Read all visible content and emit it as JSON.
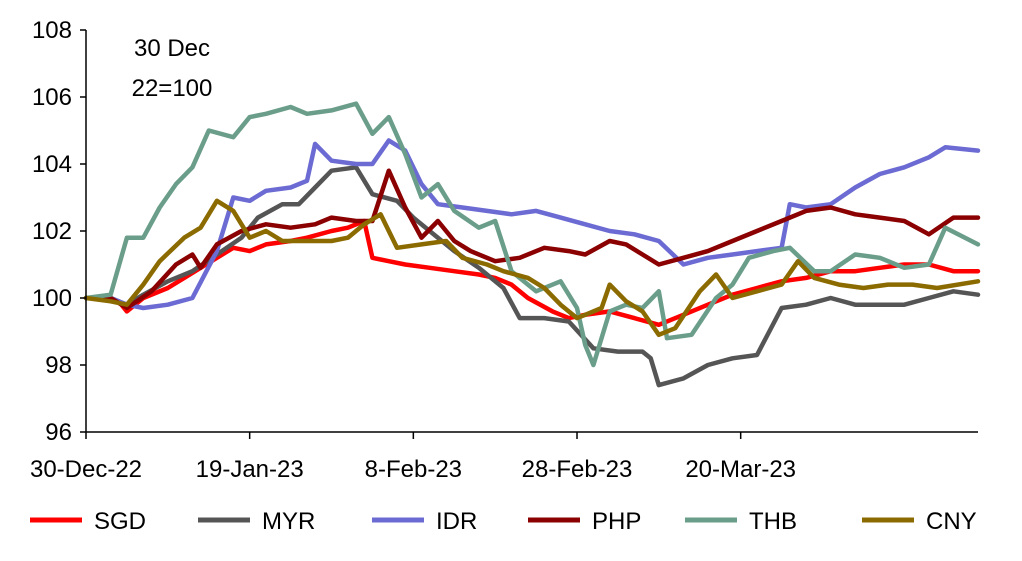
{
  "chart_data": {
    "type": "line",
    "title": "",
    "xlabel": "",
    "ylabel": "",
    "annotation": [
      "30 Dec",
      "22=100"
    ],
    "ylim": [
      96,
      108
    ],
    "yticks": [
      96,
      98,
      100,
      102,
      104,
      106,
      108
    ],
    "xlim": [
      "2022-12-30",
      "2023-04-18"
    ],
    "xticks": [
      {
        "date": "2022-12-30",
        "label": "30-Dec-22"
      },
      {
        "date": "2023-01-19",
        "label": "19-Jan-23"
      },
      {
        "date": "2023-02-08",
        "label": "8-Feb-23"
      },
      {
        "date": "2023-02-28",
        "label": "28-Feb-23"
      },
      {
        "date": "2023-03-20",
        "label": "20-Mar-23"
      }
    ],
    "grid": false,
    "legend_position": "bottom",
    "series": [
      {
        "name": "SGD",
        "color": "#ff0000",
        "points": [
          [
            "2022-12-30",
            100.0
          ],
          [
            "2023-01-01",
            100.0
          ],
          [
            "2023-01-03",
            99.9
          ],
          [
            "2023-01-04",
            99.6
          ],
          [
            "2023-01-06",
            100.0
          ],
          [
            "2023-01-09",
            100.3
          ],
          [
            "2023-01-11",
            100.6
          ],
          [
            "2023-01-13",
            100.9
          ],
          [
            "2023-01-15",
            101.2
          ],
          [
            "2023-01-17",
            101.5
          ],
          [
            "2023-01-19",
            101.4
          ],
          [
            "2023-01-21",
            101.6
          ],
          [
            "2023-01-24",
            101.7
          ],
          [
            "2023-01-26",
            101.8
          ],
          [
            "2023-01-29",
            102.0
          ],
          [
            "2023-01-31",
            102.1
          ],
          [
            "2023-02-02",
            102.3
          ],
          [
            "2023-02-03",
            101.2
          ],
          [
            "2023-02-05",
            101.1
          ],
          [
            "2023-02-07",
            101.0
          ],
          [
            "2023-02-10",
            100.9
          ],
          [
            "2023-02-13",
            100.8
          ],
          [
            "2023-02-16",
            100.7
          ],
          [
            "2023-02-18",
            100.6
          ],
          [
            "2023-02-20",
            100.4
          ],
          [
            "2023-02-22",
            100.0
          ],
          [
            "2023-02-25",
            99.6
          ],
          [
            "2023-02-27",
            99.4
          ],
          [
            "2023-03-01",
            99.5
          ],
          [
            "2023-03-04",
            99.6
          ],
          [
            "2023-03-07",
            99.4
          ],
          [
            "2023-03-10",
            99.2
          ],
          [
            "2023-03-13",
            99.5
          ],
          [
            "2023-03-16",
            99.8
          ],
          [
            "2023-03-19",
            100.1
          ],
          [
            "2023-03-22",
            100.3
          ],
          [
            "2023-03-25",
            100.5
          ],
          [
            "2023-03-28",
            100.6
          ],
          [
            "2023-03-31",
            100.8
          ],
          [
            "2023-04-03",
            100.8
          ],
          [
            "2023-04-06",
            100.9
          ],
          [
            "2023-04-09",
            101.0
          ],
          [
            "2023-04-12",
            101.0
          ],
          [
            "2023-04-15",
            100.8
          ],
          [
            "2023-04-18",
            100.8
          ]
        ]
      },
      {
        "name": "MYR",
        "color": "#555555",
        "points": [
          [
            "2022-12-30",
            100.0
          ],
          [
            "2023-01-02",
            100.0
          ],
          [
            "2023-01-04",
            99.8
          ],
          [
            "2023-01-06",
            100.1
          ],
          [
            "2023-01-09",
            100.5
          ],
          [
            "2023-01-12",
            100.8
          ],
          [
            "2023-01-15",
            101.3
          ],
          [
            "2023-01-18",
            101.8
          ],
          [
            "2023-01-20",
            102.4
          ],
          [
            "2023-01-23",
            102.8
          ],
          [
            "2023-01-25",
            102.8
          ],
          [
            "2023-01-27",
            103.3
          ],
          [
            "2023-01-29",
            103.8
          ],
          [
            "2023-02-01",
            103.9
          ],
          [
            "2023-02-03",
            103.1
          ],
          [
            "2023-02-06",
            102.9
          ],
          [
            "2023-02-08",
            102.4
          ],
          [
            "2023-02-11",
            101.8
          ],
          [
            "2023-02-13",
            101.4
          ],
          [
            "2023-02-16",
            100.9
          ],
          [
            "2023-02-19",
            100.3
          ],
          [
            "2023-02-21",
            99.4
          ],
          [
            "2023-02-24",
            99.4
          ],
          [
            "2023-02-27",
            99.3
          ],
          [
            "2023-03-02",
            98.5
          ],
          [
            "2023-03-05",
            98.4
          ],
          [
            "2023-03-08",
            98.4
          ],
          [
            "2023-03-09",
            98.2
          ],
          [
            "2023-03-10",
            97.4
          ],
          [
            "2023-03-13",
            97.6
          ],
          [
            "2023-03-16",
            98.0
          ],
          [
            "2023-03-19",
            98.2
          ],
          [
            "2023-03-22",
            98.3
          ],
          [
            "2023-03-25",
            99.7
          ],
          [
            "2023-03-28",
            99.8
          ],
          [
            "2023-03-31",
            100.0
          ],
          [
            "2023-04-03",
            99.8
          ],
          [
            "2023-04-06",
            99.8
          ],
          [
            "2023-04-09",
            99.8
          ],
          [
            "2023-04-12",
            100.0
          ],
          [
            "2023-04-15",
            100.2
          ],
          [
            "2023-04-18",
            100.1
          ]
        ]
      },
      {
        "name": "IDR",
        "color": "#6b6bd3",
        "points": [
          [
            "2022-12-30",
            100.0
          ],
          [
            "2023-01-02",
            100.0
          ],
          [
            "2023-01-04",
            99.8
          ],
          [
            "2023-01-06",
            99.7
          ],
          [
            "2023-01-09",
            99.8
          ],
          [
            "2023-01-12",
            100.0
          ],
          [
            "2023-01-15",
            101.4
          ],
          [
            "2023-01-17",
            103.0
          ],
          [
            "2023-01-19",
            102.9
          ],
          [
            "2023-01-21",
            103.2
          ],
          [
            "2023-01-24",
            103.3
          ],
          [
            "2023-01-26",
            103.5
          ],
          [
            "2023-01-27",
            104.6
          ],
          [
            "2023-01-29",
            104.1
          ],
          [
            "2023-02-01",
            104.0
          ],
          [
            "2023-02-03",
            104.0
          ],
          [
            "2023-02-05",
            104.7
          ],
          [
            "2023-02-07",
            104.4
          ],
          [
            "2023-02-09",
            103.4
          ],
          [
            "2023-02-11",
            102.8
          ],
          [
            "2023-02-14",
            102.7
          ],
          [
            "2023-02-17",
            102.6
          ],
          [
            "2023-02-20",
            102.5
          ],
          [
            "2023-02-23",
            102.6
          ],
          [
            "2023-02-26",
            102.4
          ],
          [
            "2023-03-01",
            102.2
          ],
          [
            "2023-03-04",
            102.0
          ],
          [
            "2023-03-07",
            101.9
          ],
          [
            "2023-03-10",
            101.7
          ],
          [
            "2023-03-13",
            101.0
          ],
          [
            "2023-03-16",
            101.2
          ],
          [
            "2023-03-19",
            101.3
          ],
          [
            "2023-03-22",
            101.4
          ],
          [
            "2023-03-25",
            101.5
          ],
          [
            "2023-03-26",
            102.8
          ],
          [
            "2023-03-28",
            102.7
          ],
          [
            "2023-03-31",
            102.8
          ],
          [
            "2023-04-03",
            103.3
          ],
          [
            "2023-04-06",
            103.7
          ],
          [
            "2023-04-09",
            103.9
          ],
          [
            "2023-04-12",
            104.2
          ],
          [
            "2023-04-14",
            104.5
          ],
          [
            "2023-04-18",
            104.4
          ]
        ]
      },
      {
        "name": "PHP",
        "color": "#8b0000",
        "points": [
          [
            "2022-12-30",
            100.0
          ],
          [
            "2023-01-02",
            100.0
          ],
          [
            "2023-01-04",
            99.7
          ],
          [
            "2023-01-07",
            100.2
          ],
          [
            "2023-01-10",
            101.0
          ],
          [
            "2023-01-12",
            101.3
          ],
          [
            "2023-01-13",
            100.9
          ],
          [
            "2023-01-15",
            101.6
          ],
          [
            "2023-01-18",
            102.0
          ],
          [
            "2023-01-21",
            102.2
          ],
          [
            "2023-01-24",
            102.1
          ],
          [
            "2023-01-27",
            102.2
          ],
          [
            "2023-01-29",
            102.4
          ],
          [
            "2023-02-01",
            102.3
          ],
          [
            "2023-02-03",
            102.3
          ],
          [
            "2023-02-05",
            103.8
          ],
          [
            "2023-02-07",
            102.7
          ],
          [
            "2023-02-09",
            101.8
          ],
          [
            "2023-02-11",
            102.3
          ],
          [
            "2023-02-13",
            101.7
          ],
          [
            "2023-02-15",
            101.4
          ],
          [
            "2023-02-18",
            101.1
          ],
          [
            "2023-02-21",
            101.2
          ],
          [
            "2023-02-24",
            101.5
          ],
          [
            "2023-02-27",
            101.4
          ],
          [
            "2023-03-01",
            101.3
          ],
          [
            "2023-03-04",
            101.7
          ],
          [
            "2023-03-06",
            101.6
          ],
          [
            "2023-03-08",
            101.3
          ],
          [
            "2023-03-10",
            101.0
          ],
          [
            "2023-03-13",
            101.2
          ],
          [
            "2023-03-16",
            101.4
          ],
          [
            "2023-03-19",
            101.7
          ],
          [
            "2023-03-22",
            102.0
          ],
          [
            "2023-03-25",
            102.3
          ],
          [
            "2023-03-28",
            102.6
          ],
          [
            "2023-03-31",
            102.7
          ],
          [
            "2023-04-03",
            102.5
          ],
          [
            "2023-04-06",
            102.4
          ],
          [
            "2023-04-09",
            102.3
          ],
          [
            "2023-04-12",
            101.9
          ],
          [
            "2023-04-15",
            102.4
          ],
          [
            "2023-04-18",
            102.4
          ]
        ]
      },
      {
        "name": "THB",
        "color": "#6b9e8a",
        "points": [
          [
            "2022-12-30",
            100.0
          ],
          [
            "2023-01-02",
            100.1
          ],
          [
            "2023-01-04",
            101.8
          ],
          [
            "2023-01-06",
            101.8
          ],
          [
            "2023-01-08",
            102.7
          ],
          [
            "2023-01-10",
            103.4
          ],
          [
            "2023-01-12",
            103.9
          ],
          [
            "2023-01-14",
            105.0
          ],
          [
            "2023-01-17",
            104.8
          ],
          [
            "2023-01-19",
            105.4
          ],
          [
            "2023-01-21",
            105.5
          ],
          [
            "2023-01-24",
            105.7
          ],
          [
            "2023-01-26",
            105.5
          ],
          [
            "2023-01-29",
            105.6
          ],
          [
            "2023-02-01",
            105.8
          ],
          [
            "2023-02-03",
            104.9
          ],
          [
            "2023-02-05",
            105.4
          ],
          [
            "2023-02-07",
            104.3
          ],
          [
            "2023-02-09",
            103.0
          ],
          [
            "2023-02-11",
            103.4
          ],
          [
            "2023-02-13",
            102.6
          ],
          [
            "2023-02-16",
            102.1
          ],
          [
            "2023-02-18",
            102.3
          ],
          [
            "2023-02-20",
            100.8
          ],
          [
            "2023-02-23",
            100.2
          ],
          [
            "2023-02-26",
            100.5
          ],
          [
            "2023-02-28",
            99.7
          ],
          [
            "2023-03-01",
            98.6
          ],
          [
            "2023-03-02",
            98.0
          ],
          [
            "2023-03-04",
            99.6
          ],
          [
            "2023-03-06",
            99.8
          ],
          [
            "2023-03-08",
            99.7
          ],
          [
            "2023-03-10",
            100.2
          ],
          [
            "2023-03-11",
            98.8
          ],
          [
            "2023-03-14",
            98.9
          ],
          [
            "2023-03-17",
            100.0
          ],
          [
            "2023-03-19",
            100.4
          ],
          [
            "2023-03-21",
            101.2
          ],
          [
            "2023-03-24",
            101.4
          ],
          [
            "2023-03-26",
            101.5
          ],
          [
            "2023-03-29",
            100.8
          ],
          [
            "2023-03-31",
            100.8
          ],
          [
            "2023-04-03",
            101.3
          ],
          [
            "2023-04-06",
            101.2
          ],
          [
            "2023-04-09",
            100.9
          ],
          [
            "2023-04-12",
            101.0
          ],
          [
            "2023-04-14",
            102.1
          ],
          [
            "2023-04-18",
            101.6
          ]
        ]
      },
      {
        "name": "CNY",
        "color": "#8b6b00",
        "points": [
          [
            "2022-12-30",
            100.0
          ],
          [
            "2023-01-02",
            99.9
          ],
          [
            "2023-01-04",
            99.8
          ],
          [
            "2023-01-06",
            100.4
          ],
          [
            "2023-01-08",
            101.1
          ],
          [
            "2023-01-11",
            101.8
          ],
          [
            "2023-01-13",
            102.1
          ],
          [
            "2023-01-15",
            102.9
          ],
          [
            "2023-01-17",
            102.6
          ],
          [
            "2023-01-19",
            101.8
          ],
          [
            "2023-01-21",
            102.0
          ],
          [
            "2023-01-23",
            101.7
          ],
          [
            "2023-01-26",
            101.7
          ],
          [
            "2023-01-29",
            101.7
          ],
          [
            "2023-01-31",
            101.8
          ],
          [
            "2023-02-02",
            102.2
          ],
          [
            "2023-02-04",
            102.5
          ],
          [
            "2023-02-06",
            101.5
          ],
          [
            "2023-02-09",
            101.6
          ],
          [
            "2023-02-12",
            101.7
          ],
          [
            "2023-02-14",
            101.2
          ],
          [
            "2023-02-17",
            101.0
          ],
          [
            "2023-02-19",
            100.8
          ],
          [
            "2023-02-22",
            100.6
          ],
          [
            "2023-02-24",
            100.3
          ],
          [
            "2023-02-26",
            99.8
          ],
          [
            "2023-02-28",
            99.4
          ],
          [
            "2023-03-01",
            99.5
          ],
          [
            "2023-03-03",
            99.7
          ],
          [
            "2023-03-04",
            100.4
          ],
          [
            "2023-03-06",
            99.9
          ],
          [
            "2023-03-08",
            99.6
          ],
          [
            "2023-03-10",
            98.9
          ],
          [
            "2023-03-12",
            99.1
          ],
          [
            "2023-03-15",
            100.2
          ],
          [
            "2023-03-17",
            100.7
          ],
          [
            "2023-03-19",
            100.0
          ],
          [
            "2023-03-22",
            100.2
          ],
          [
            "2023-03-25",
            100.4
          ],
          [
            "2023-03-27",
            101.1
          ],
          [
            "2023-03-29",
            100.6
          ],
          [
            "2023-04-01",
            100.4
          ],
          [
            "2023-04-04",
            100.3
          ],
          [
            "2023-04-07",
            100.4
          ],
          [
            "2023-04-10",
            100.4
          ],
          [
            "2023-04-13",
            100.3
          ],
          [
            "2023-04-18",
            100.5
          ]
        ]
      }
    ]
  }
}
